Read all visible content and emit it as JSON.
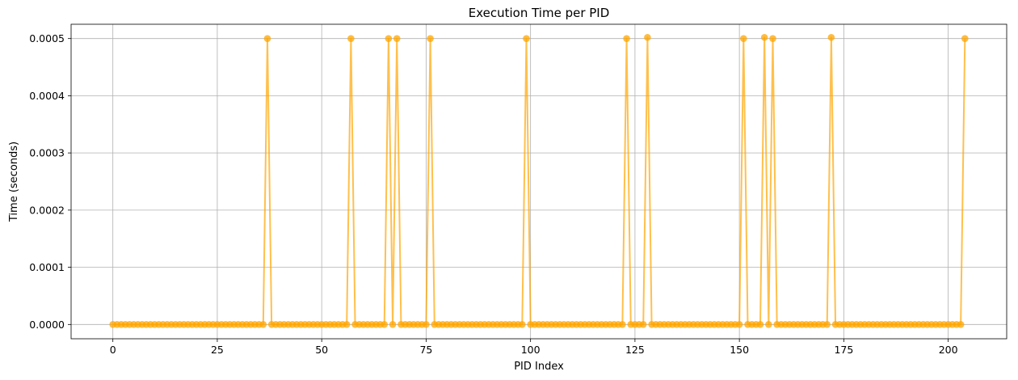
{
  "chart_data": {
    "type": "line",
    "title": "Execution Time per PID",
    "xlabel": "PID Index",
    "ylabel": "Time (seconds)",
    "xlim": [
      -10,
      214
    ],
    "ylim": [
      -2.5e-05,
      0.000525
    ],
    "x_ticks": [
      0,
      25,
      50,
      75,
      100,
      125,
      150,
      175,
      200
    ],
    "x_tick_labels": [
      "0",
      "25",
      "50",
      "75",
      "100",
      "125",
      "150",
      "175",
      "200"
    ],
    "y_ticks": [
      0,
      0.0001,
      0.0002,
      0.0003,
      0.0004,
      0.0005
    ],
    "y_tick_labels": [
      "0.0000",
      "0.0001",
      "0.0002",
      "0.0003",
      "0.0004",
      "0.0005"
    ],
    "grid": true,
    "legend": "none",
    "series": [
      {
        "color": "#FFA500",
        "marker": "circle",
        "x_start": 0,
        "x_end": 204,
        "baseline_value": 0,
        "spike_indices": [
          37,
          57,
          66,
          68,
          76,
          99,
          123,
          128,
          151,
          156,
          158,
          172,
          204
        ],
        "spike_values": [
          0.0005,
          0.0005,
          0.0005,
          0.0005,
          0.0005,
          0.0005,
          0.0005,
          0.000502,
          0.0005,
          0.000502,
          0.0005,
          0.000502,
          0.0005
        ]
      }
    ]
  }
}
